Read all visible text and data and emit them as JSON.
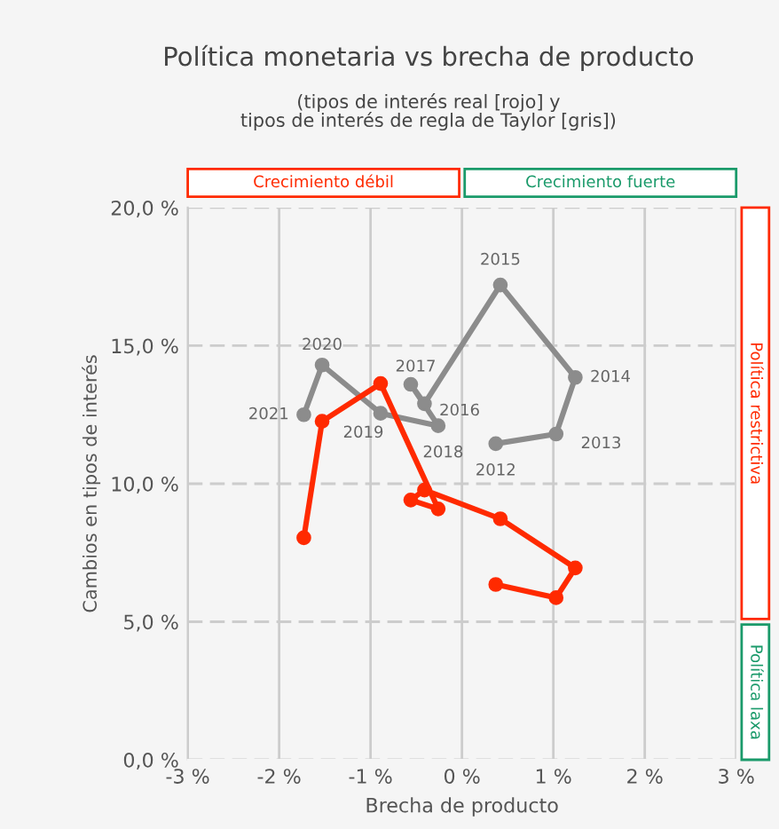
{
  "chart_data": {
    "type": "line",
    "title": "Política monetaria vs brecha de producto",
    "subtitle": "(tipos de interés real [rojo] y\ntipos de interés de regla de Taylor [gris])",
    "xlabel": "Brecha de producto",
    "ylabel": "Cambios en tipos de interés",
    "series": [
      {
        "color": "#8c8c8c",
        "x": [
          0.37,
          1.03,
          1.24,
          0.42,
          -0.41,
          -0.56,
          -0.26,
          -0.89,
          -1.53,
          -1.73
        ],
        "values": [
          11.45,
          11.8,
          13.85,
          17.2,
          12.9,
          13.6,
          12.1,
          12.55,
          14.3,
          12.5
        ]
      },
      {
        "color": "#ff2a00",
        "x": [
          0.37,
          1.03,
          1.24,
          0.42,
          -0.41,
          -0.56,
          -0.26,
          -0.89,
          -1.53,
          -1.73
        ],
        "values": [
          6.35,
          5.87,
          6.95,
          8.73,
          9.77,
          9.41,
          9.09,
          13.63,
          12.26,
          8.04
        ]
      }
    ],
    "annotations": [
      "Crecimiento débil",
      "Crecimiento fuerte",
      "Política restrictiva",
      "Política laxa",
      {
        "text": "2012",
        "x": 0.37,
        "y": 11.45
      },
      {
        "text": "2013",
        "x": 1.03,
        "y": 11.8
      },
      {
        "text": "2014",
        "x": 1.24,
        "y": 13.85
      },
      {
        "text": "2015",
        "x": 0.42,
        "y": 17.2
      },
      {
        "text": "2016",
        "x": -0.41,
        "y": 12.9
      },
      {
        "text": "2017",
        "x": -0.56,
        "y": 13.6
      },
      {
        "text": "2018",
        "x": -0.26,
        "y": 12.1
      },
      {
        "text": "2019",
        "x": -0.89,
        "y": 12.55
      },
      {
        "text": "2020",
        "x": -1.53,
        "y": 14.3
      },
      {
        "text": "2021",
        "x": -1.73,
        "y": 12.5
      }
    ],
    "xlim": [
      -3,
      3
    ],
    "ylim": [
      0,
      20
    ],
    "xticks": [
      {
        "value": -3,
        "label": "-3 %"
      },
      {
        "value": -2,
        "label": "-2 %"
      },
      {
        "value": -1,
        "label": "-1 %"
      },
      {
        "value": 0,
        "label": "0 %"
      },
      {
        "value": 1,
        "label": "1 %"
      },
      {
        "value": 2,
        "label": "2 %"
      },
      {
        "value": 3,
        "label": "3 %"
      }
    ],
    "yticks": [
      {
        "value": 0,
        "label": "0,0 %"
      },
      {
        "value": 5,
        "label": "5,0 %"
      },
      {
        "value": 10,
        "label": "10,0 %"
      },
      {
        "value": 15,
        "label": "15,0 %"
      },
      {
        "value": 20,
        "label": "20,0 %"
      }
    ],
    "grid": true,
    "marker": "circle",
    "line_style": "solid",
    "legend": false
  }
}
